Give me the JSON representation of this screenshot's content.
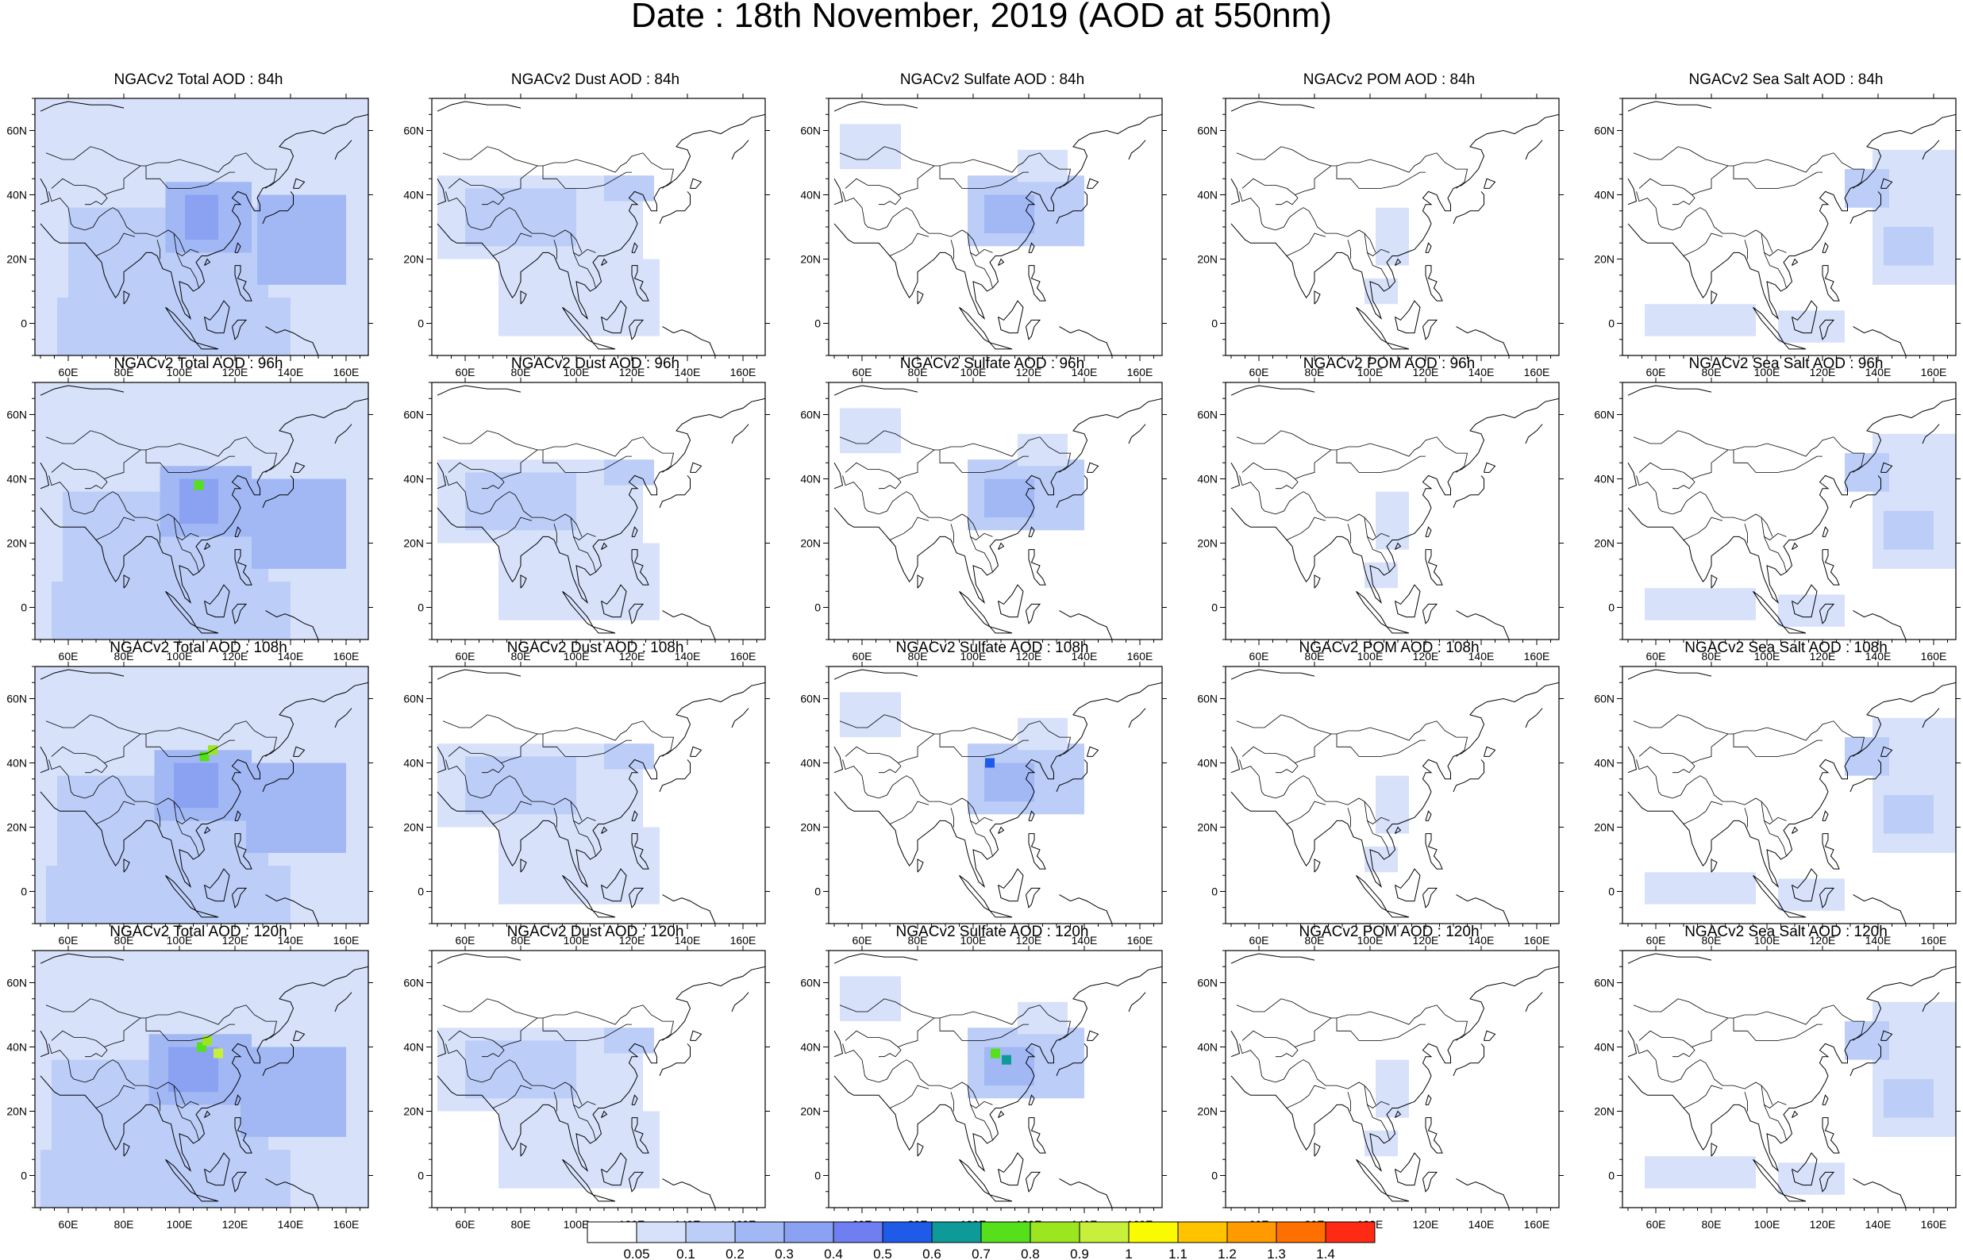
{
  "title": "Date : 18th November, 2019 (AOD at 550nm)",
  "panels": [
    [
      "NGACv2 Total AOD : 84h",
      "NGACv2 Dust AOD : 84h",
      "NGACv2 Sulfate AOD : 84h",
      "NGACv2 POM AOD : 84h",
      "NGACv2 Sea Salt AOD : 84h"
    ],
    [
      "NGACv2 Total AOD : 96h",
      "NGACv2 Dust AOD : 96h",
      "NGACv2 Sulfate AOD : 96h",
      "NGACv2 POM AOD : 96h",
      "NGACv2 Sea Salt AOD : 96h"
    ],
    [
      "NGACv2 Total AOD : 108h",
      "NGACv2 Dust AOD : 108h",
      "NGACv2 Sulfate AOD : 108h",
      "NGACv2 POM AOD : 108h",
      "NGACv2 Sea Salt AOD : 108h"
    ],
    [
      "NGACv2 Total AOD : 120h",
      "NGACv2 Dust AOD : 120h",
      "NGACv2 Sulfate AOD : 120h",
      "NGACv2 POM AOD : 120h",
      "NGACv2 Sea Salt  AOD : 120h"
    ]
  ],
  "axes": {
    "lon_ticks": [
      "60E",
      "80E",
      "100E",
      "120E",
      "140E",
      "160E"
    ],
    "lat_ticks": [
      "60N",
      "40N",
      "20N",
      "0"
    ]
  },
  "colorbar": {
    "labels": [
      "0.05",
      "0.1",
      "0.2",
      "0.3",
      "0.4",
      "0.5",
      "0.6",
      "0.7",
      "0.8",
      "0.9",
      "1",
      "1.1",
      "1.2",
      "1.3",
      "1.4"
    ],
    "colors": [
      "#ffffff",
      "#d7e1fa",
      "#bccdf8",
      "#a2b8f5",
      "#8aa2f1",
      "#6f7ef0",
      "#1f5be8",
      "#0f9a9a",
      "#55e01b",
      "#9be61e",
      "#c8ef3c",
      "#fafa00",
      "#ffc300",
      "#ff9a00",
      "#ff7000",
      "#ff2a14"
    ]
  }
}
